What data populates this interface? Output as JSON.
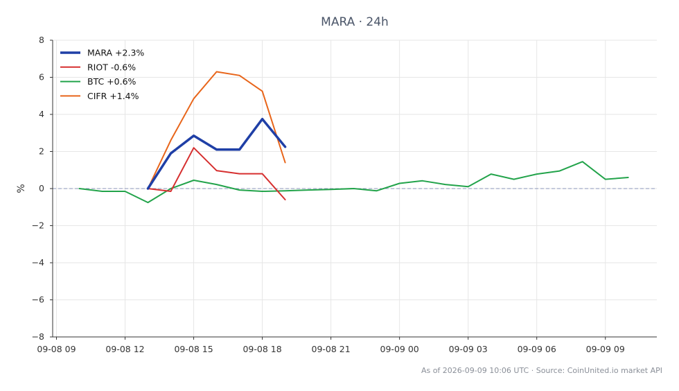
{
  "chart_data": {
    "type": "line",
    "title": "MARA · 24h",
    "xlabel": "",
    "ylabel": "%",
    "ylim": [
      -8,
      8
    ],
    "yticks": [
      -8,
      -6,
      -4,
      -2,
      0,
      2,
      4,
      6,
      8
    ],
    "ytick_labels": [
      "−8",
      "−6",
      "−4",
      "−2",
      "0",
      "2",
      "4",
      "6",
      "8"
    ],
    "xlim": [
      "2026-09-08 08:50",
      "2026-09-09 11:15"
    ],
    "xticks": [
      "2026-09-08 09:00",
      "2026-09-08 12:00",
      "2026-09-08 15:00",
      "2026-09-08 18:00",
      "2026-09-08 21:00",
      "2026-09-09 00:00",
      "2026-09-09 03:00",
      "2026-09-09 06:00",
      "2026-09-09 09:00"
    ],
    "xtick_labels": [
      "09-08 09",
      "09-08 12",
      "09-08 15",
      "09-08 18",
      "09-08 21",
      "09-09 00",
      "09-09 03",
      "09-09 06",
      "09-09 09"
    ],
    "grid": true,
    "zero_line": true,
    "legend_position": "top-left",
    "series": [
      {
        "name": "MARA +2.3%",
        "color": "#1f3fa6",
        "line_weight": "bold",
        "x": [
          "2026-09-08 13:00",
          "2026-09-08 14:00",
          "2026-09-08 15:00",
          "2026-09-08 16:00",
          "2026-09-08 17:00",
          "2026-09-08 18:00",
          "2026-09-08 19:00"
        ],
        "y": [
          0.0,
          1.9,
          2.85,
          2.1,
          2.1,
          3.75,
          2.25
        ]
      },
      {
        "name": "RIOT -0.6%",
        "color": "#d62f2f",
        "x": [
          "2026-09-08 13:00",
          "2026-09-08 14:00",
          "2026-09-08 15:00",
          "2026-09-08 16:00",
          "2026-09-08 17:00",
          "2026-09-08 18:00",
          "2026-09-08 19:00"
        ],
        "y": [
          0.0,
          -0.15,
          2.2,
          0.97,
          0.8,
          0.8,
          -0.6
        ]
      },
      {
        "name": "BTC +0.6%",
        "color": "#22a34a",
        "x": [
          "2026-09-08 10:00",
          "2026-09-08 11:00",
          "2026-09-08 12:00",
          "2026-09-08 13:00",
          "2026-09-08 14:00",
          "2026-09-08 15:00",
          "2026-09-08 16:00",
          "2026-09-08 17:00",
          "2026-09-08 18:00",
          "2026-09-08 19:00",
          "2026-09-08 20:00",
          "2026-09-08 21:00",
          "2026-09-08 22:00",
          "2026-09-08 23:00",
          "2026-09-09 00:00",
          "2026-09-09 01:00",
          "2026-09-09 02:00",
          "2026-09-09 03:00",
          "2026-09-09 04:00",
          "2026-09-09 05:00",
          "2026-09-09 06:00",
          "2026-09-09 07:00",
          "2026-09-09 08:00",
          "2026-09-09 09:00",
          "2026-09-09 10:00"
        ],
        "y": [
          0.0,
          -0.15,
          -0.15,
          -0.75,
          0.0,
          0.45,
          0.22,
          -0.08,
          -0.15,
          -0.12,
          -0.08,
          -0.05,
          0.0,
          -0.12,
          0.28,
          0.42,
          0.22,
          0.1,
          0.78,
          0.5,
          0.78,
          0.95,
          1.45,
          0.5,
          0.6
        ]
      },
      {
        "name": "CIFR +1.4%",
        "color": "#e8651a",
        "x": [
          "2026-09-08 13:00",
          "2026-09-08 14:00",
          "2026-09-08 15:00",
          "2026-09-08 16:00",
          "2026-09-08 17:00",
          "2026-09-08 18:00",
          "2026-09-08 19:00"
        ],
        "y": [
          0.0,
          2.6,
          4.85,
          6.3,
          6.1,
          5.25,
          1.4
        ]
      }
    ],
    "footer": "As of 2026-09-09 10:06 UTC · Source: CoinUnited.io market API"
  }
}
